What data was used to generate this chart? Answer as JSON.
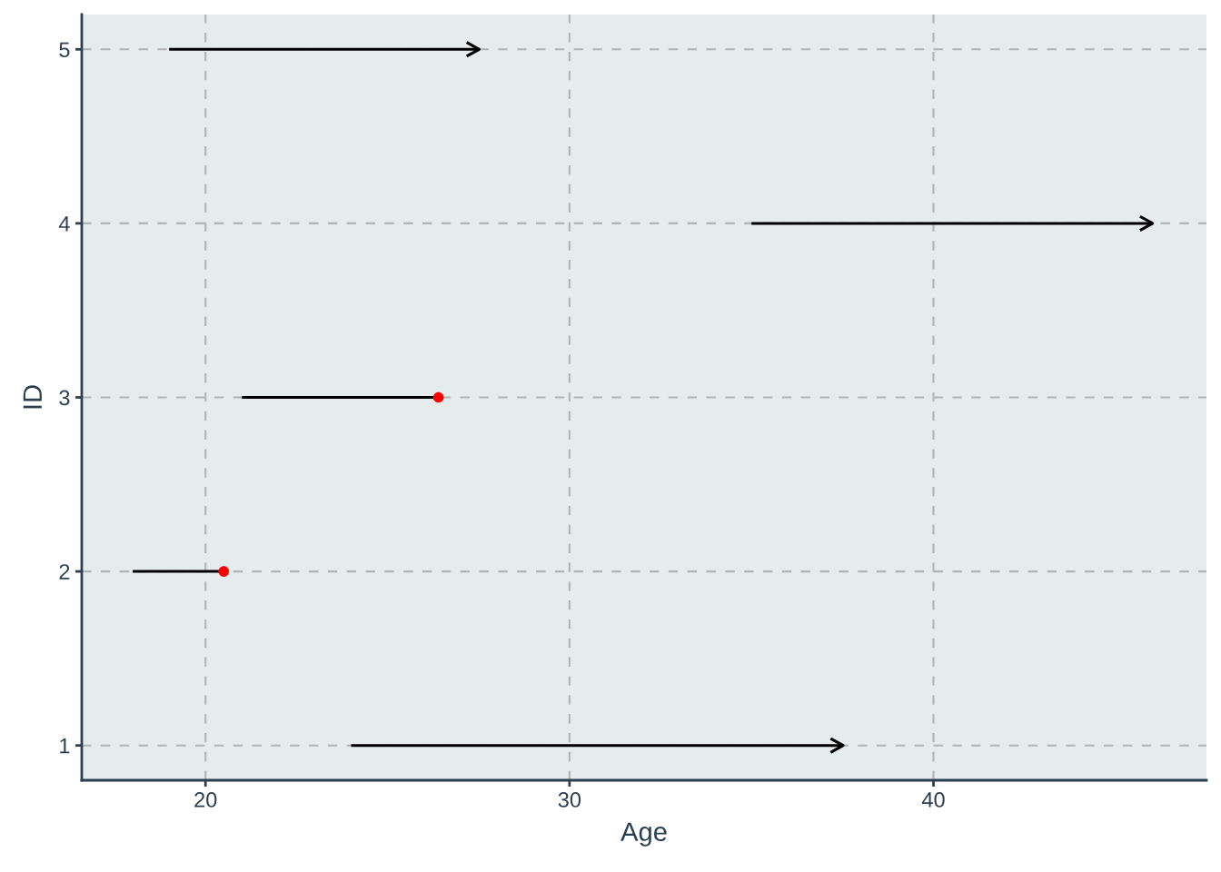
{
  "chart_data": {
    "type": "line",
    "xlabel": "Age",
    "ylabel": "ID",
    "xlim": [
      16.6,
      47.5
    ],
    "ylim": [
      0.8,
      5.2
    ],
    "xticks": [
      20,
      30,
      40
    ],
    "yticks": [
      1,
      2,
      3,
      4,
      5
    ],
    "grid": true,
    "line_style": "solid",
    "series": [
      {
        "color": "#000000",
        "x": [
          24,
          37.6
        ],
        "values": [
          1,
          1
        ]
      },
      {
        "color": "#000000",
        "x": [
          18,
          20.5
        ],
        "values": [
          2,
          2
        ]
      },
      {
        "color": "#000000",
        "x": [
          21,
          26.4
        ],
        "values": [
          3,
          3
        ]
      },
      {
        "color": "#000000",
        "x": [
          35,
          46.1
        ],
        "values": [
          4,
          4
        ]
      },
      {
        "color": "#000000",
        "x": [
          19,
          27.6
        ],
        "values": [
          5,
          5
        ]
      },
      {
        "type": "scatter",
        "color": "#ff0000",
        "marker": "circle",
        "x": [
          20.5,
          26.4
        ],
        "values": [
          2,
          3
        ]
      }
    ]
  }
}
